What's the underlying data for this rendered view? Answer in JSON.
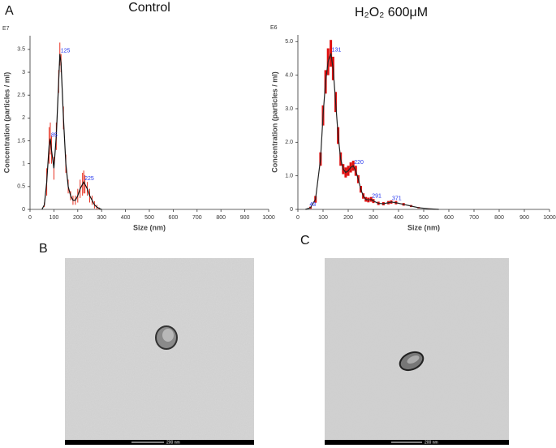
{
  "panel_a": "A",
  "chart_data": [
    {
      "type": "line",
      "title": "Control",
      "multiplier": "E7",
      "x_label": "Size (nm)",
      "y_label": "Concentration (particles / ml)",
      "x": [
        50,
        60,
        70,
        80,
        85,
        90,
        100,
        110,
        120,
        125,
        130,
        140,
        150,
        160,
        170,
        180,
        190,
        200,
        210,
        220,
        225,
        230,
        240,
        250,
        260,
        270,
        280,
        290,
        300
      ],
      "values": [
        0,
        0.1,
        0.6,
        1.4,
        1.55,
        1.3,
        0.9,
        1.6,
        2.8,
        3.4,
        3.2,
        2.0,
        1.0,
        0.5,
        0.3,
        0.2,
        0.2,
        0.3,
        0.45,
        0.55,
        0.6,
        0.55,
        0.45,
        0.3,
        0.2,
        0.1,
        0.05,
        0.02,
        0
      ],
      "errors": [
        0,
        0.05,
        0.3,
        0.4,
        0.35,
        0.3,
        0.25,
        0.3,
        0.25,
        0.25,
        0.2,
        0.25,
        0.2,
        0.15,
        0.1,
        0.1,
        0.1,
        0.15,
        0.2,
        0.25,
        0.25,
        0.2,
        0.15,
        0.15,
        0.1,
        0.08,
        0.05,
        0.02,
        0
      ],
      "color": "#111111",
      "error_color": "#e83020",
      "peak_labels": [
        85,
        125,
        225
      ],
      "xlim": [
        0,
        1000
      ],
      "xticks": [
        0,
        100,
        200,
        300,
        400,
        500,
        600,
        700,
        800,
        900,
        1000
      ],
      "ylim": [
        0,
        3.8
      ],
      "yticks": [
        0,
        0.5,
        1,
        1.5,
        2,
        2.5,
        3,
        3.5
      ]
    },
    {
      "type": "line",
      "title": "H₂O₂ 600μM",
      "multiplier": "E6",
      "x_label": "Size (nm)",
      "y_label": "Concentration (particles / ml)",
      "x": [
        30,
        50,
        70,
        90,
        100,
        110,
        120,
        131,
        140,
        150,
        160,
        170,
        180,
        190,
        200,
        210,
        220,
        230,
        240,
        250,
        260,
        270,
        280,
        291,
        300,
        320,
        340,
        360,
        371,
        390,
        420,
        450,
        480,
        520,
        560
      ],
      "values": [
        0,
        0.05,
        0.3,
        1.5,
        2.8,
        3.8,
        4.4,
        4.65,
        4.2,
        3.2,
        2.2,
        1.5,
        1.2,
        1.1,
        1.15,
        1.25,
        1.3,
        1.15,
        0.9,
        0.6,
        0.4,
        0.3,
        0.28,
        0.3,
        0.25,
        0.18,
        0.17,
        0.2,
        0.22,
        0.2,
        0.15,
        0.1,
        0.05,
        0.02,
        0
      ],
      "errors": [
        0,
        0.03,
        0.1,
        0.2,
        0.3,
        0.35,
        0.4,
        0.4,
        0.35,
        0.3,
        0.25,
        0.2,
        0.15,
        0.15,
        0.15,
        0.15,
        0.15,
        0.15,
        0.12,
        0.1,
        0.08,
        0.07,
        0.07,
        0.07,
        0.06,
        0.05,
        0.05,
        0.05,
        0.05,
        0.05,
        0.04,
        0.03,
        0.02,
        0.01,
        0
      ],
      "color": "#222222",
      "error_color": "#e01010",
      "peak_labels": [
        43,
        131,
        220,
        291,
        371
      ],
      "xlim": [
        0,
        1000
      ],
      "xticks": [
        0,
        100,
        200,
        300,
        400,
        500,
        600,
        700,
        800,
        900,
        1000
      ],
      "ylim": [
        0,
        5.2
      ],
      "yticks": [
        0,
        {
          "value": 1,
          "label": "1.0"
        },
        {
          "value": 2,
          "label": "2.0"
        },
        {
          "value": 3,
          "label": "3.0"
        },
        {
          "value": 4,
          "label": "4.0"
        },
        {
          "value": 5,
          "label": "5.0"
        }
      ]
    }
  ],
  "images": [
    {
      "label": "B",
      "scale_bar": "200 nm"
    },
    {
      "label": "C",
      "scale_bar": "200 nm"
    }
  ]
}
